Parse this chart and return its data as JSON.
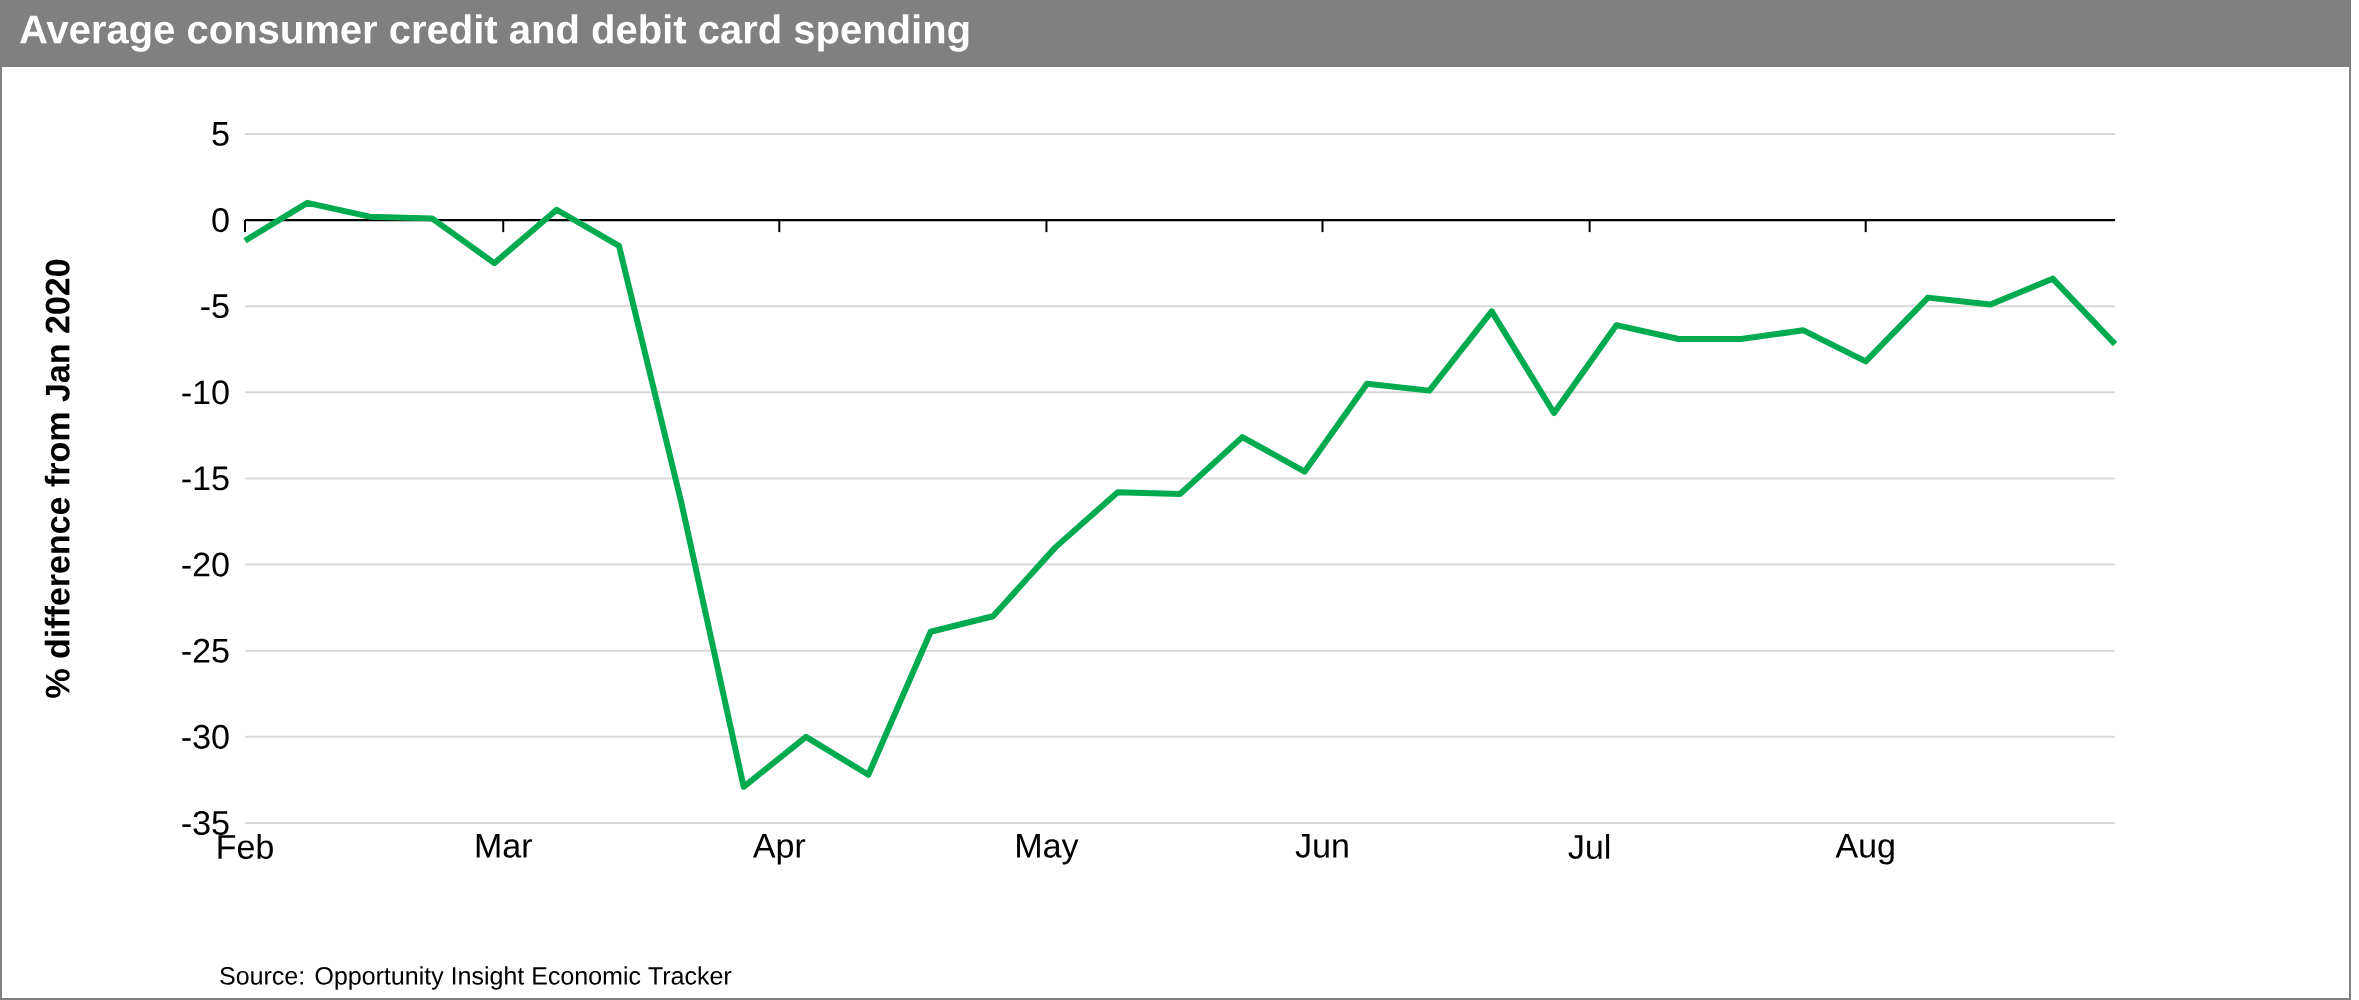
{
  "chart_data": {
    "type": "line",
    "title": "Average consumer credit and debit card spending",
    "ylabel": "% difference from Jan 2020",
    "annotations": [
      "Source: Opportunity Insight Economic Tracker"
    ],
    "x": [
      "2020-02-01",
      "2020-02-08",
      "2020-02-15",
      "2020-02-22",
      "2020-02-29",
      "2020-03-07",
      "2020-03-14",
      "2020-03-21",
      "2020-03-28",
      "2020-04-04",
      "2020-04-11",
      "2020-04-18",
      "2020-04-25",
      "2020-05-02",
      "2020-05-09",
      "2020-05-16",
      "2020-05-23",
      "2020-05-30",
      "2020-06-06",
      "2020-06-13",
      "2020-06-20",
      "2020-06-27",
      "2020-07-04",
      "2020-07-11",
      "2020-07-18",
      "2020-07-25",
      "2020-08-01",
      "2020-08-08",
      "2020-08-15",
      "2020-08-22",
      "2020-08-29"
    ],
    "series": [
      {
        "color": "#00aa4f",
        "values": [
          -1.2,
          1.0,
          0.2,
          0.1,
          -2.5,
          0.6,
          -1.5,
          -16.4,
          -32.9,
          -30.0,
          -32.2,
          -23.9,
          -23.0,
          -19.0,
          -15.8,
          -15.9,
          -12.6,
          -14.6,
          -9.5,
          -9.9,
          -5.3,
          -11.2,
          -6.1,
          -6.9,
          -6.9,
          -6.4,
          -8.2,
          -4.5,
          -4.9,
          -3.4,
          -7.2
        ]
      }
    ],
    "xlim": [
      "2020-02-01",
      "2020-08-29"
    ],
    "xticks": [
      {
        "value": "2020-02-01",
        "label": "Feb"
      },
      {
        "value": "2020-03-01",
        "label": "Mar"
      },
      {
        "value": "2020-04-01",
        "label": "Apr"
      },
      {
        "value": "2020-05-01",
        "label": "May"
      },
      {
        "value": "2020-06-01",
        "label": "Jun"
      },
      {
        "value": "2020-07-01",
        "label": "Jul"
      },
      {
        "value": "2020-08-01",
        "label": "Aug"
      }
    ],
    "ylim": [
      -35,
      5
    ],
    "yticks": [
      -35,
      -30,
      -25,
      -20,
      -15,
      -10,
      -5,
      0,
      5
    ],
    "grid": "y"
  }
}
